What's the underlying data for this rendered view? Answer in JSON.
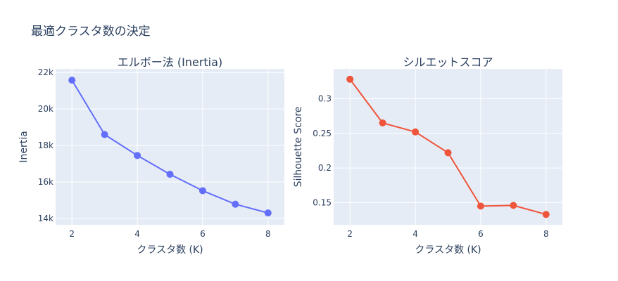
{
  "title": "最適クラスタ数の決定",
  "chart_data": [
    {
      "type": "line",
      "title": "エルボー法 (Inertia)",
      "xlabel": "クラスタ数 (K)",
      "ylabel": "Inertia",
      "x": [
        2,
        3,
        4,
        5,
        6,
        7,
        8
      ],
      "values": [
        21580,
        18600,
        17450,
        16420,
        15520,
        14780,
        14300
      ],
      "xlim": [
        1.5,
        8.5
      ],
      "ylim": [
        13650,
        22200
      ],
      "xticks": [
        2,
        4,
        6,
        8
      ],
      "xtick_labels": [
        "2",
        "4",
        "6",
        "8"
      ],
      "yticks": [
        14000,
        16000,
        18000,
        20000,
        22000
      ],
      "ytick_labels": [
        "14k",
        "16k",
        "18k",
        "20k",
        "22k"
      ],
      "color": "#636efa",
      "grid": true
    },
    {
      "type": "line",
      "title": "シルエットスコア",
      "xlabel": "クラスタ数 (K)",
      "ylabel": "Silhouette Score",
      "x": [
        2,
        3,
        4,
        5,
        6,
        7,
        8
      ],
      "values": [
        0.328,
        0.265,
        0.252,
        0.222,
        0.145,
        0.146,
        0.133
      ],
      "xlim": [
        1.5,
        8.5
      ],
      "ylim": [
        0.118,
        0.343
      ],
      "xticks": [
        2,
        4,
        6,
        8
      ],
      "xtick_labels": [
        "2",
        "4",
        "6",
        "8"
      ],
      "yticks": [
        0.15,
        0.2,
        0.25,
        0.3
      ],
      "ytick_labels": [
        "0.15",
        "0.2",
        "0.25",
        "0.3"
      ],
      "color": "#ef553b",
      "grid": true
    }
  ]
}
